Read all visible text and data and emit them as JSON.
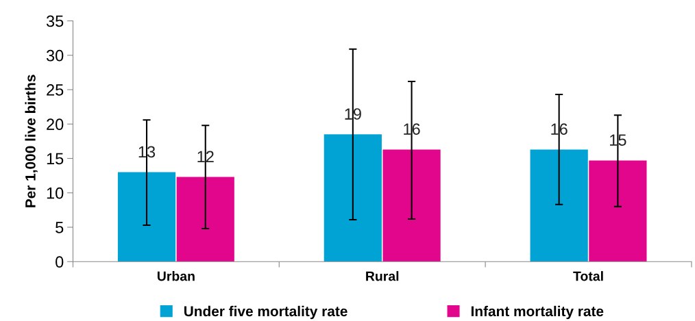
{
  "chart_data": {
    "type": "bar",
    "ylabel": "Per 1,000 live births",
    "categories": [
      "Urban",
      "Rural",
      "Total"
    ],
    "series": [
      {
        "name": "Under five mortality rate",
        "color": "#00a3d4",
        "values": [
          13.0,
          18.5,
          16.3
        ],
        "value_labels": [
          "13",
          "19",
          "16"
        ],
        "errors": [
          [
            5.3,
            20.6
          ],
          [
            6.1,
            30.9
          ],
          [
            8.3,
            24.3
          ]
        ]
      },
      {
        "name": "Infant mortality rate",
        "color": "#e2068c",
        "values": [
          12.3,
          16.3,
          14.7
        ],
        "value_labels": [
          "12",
          "16",
          "15"
        ],
        "errors": [
          [
            4.8,
            19.8
          ],
          [
            6.2,
            26.2
          ],
          [
            8.0,
            21.3
          ]
        ]
      }
    ],
    "ylim": [
      0,
      35
    ],
    "yticks": [
      0,
      5,
      10,
      15,
      20,
      25,
      30,
      35
    ],
    "grid": false,
    "legend": "bottom"
  }
}
